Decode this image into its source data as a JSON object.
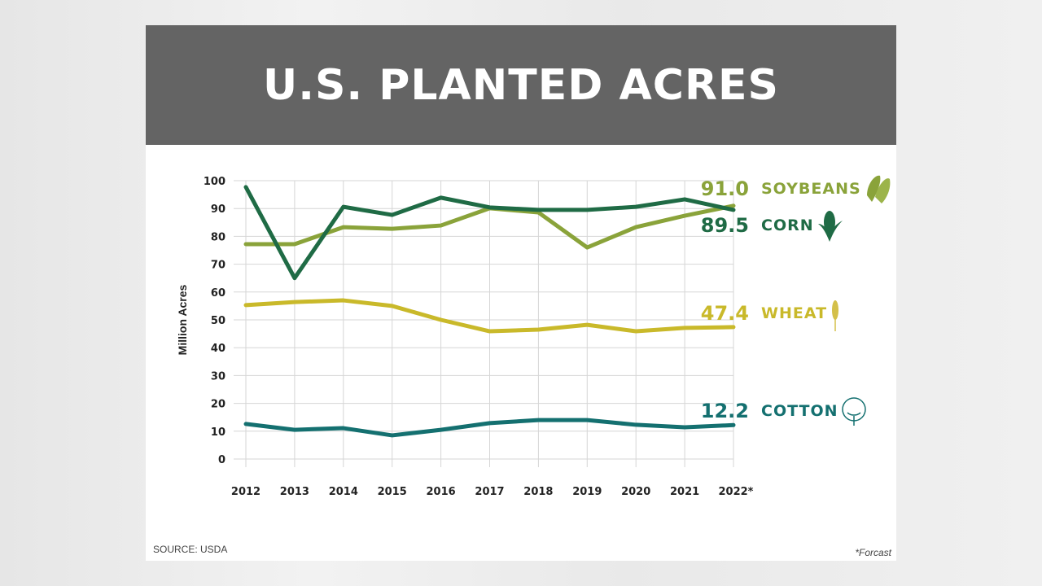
{
  "chart_data": {
    "type": "line",
    "title": "U.S. PLANTED ACRES",
    "ylabel": "Million Acres",
    "xlabel": "",
    "ylim": [
      0,
      100
    ],
    "yticks": [
      0,
      10,
      20,
      30,
      40,
      50,
      60,
      70,
      80,
      90,
      100
    ],
    "categories": [
      "2012",
      "2013",
      "2014",
      "2015",
      "2016",
      "2017",
      "2018",
      "2019",
      "2020",
      "2021",
      "2022*"
    ],
    "grid": true,
    "series": [
      {
        "name": "SOYBEANS",
        "label_value": "91.0",
        "color": "#8aa33a",
        "icon": "soybean-pod-icon",
        "values": [
          77.2,
          77.2,
          83.3,
          82.7,
          83.9,
          90.1,
          88.6,
          76.0,
          83.3,
          87.4,
          91.0
        ]
      },
      {
        "name": "CORN",
        "label_value": "89.5",
        "color": "#1f6b45",
        "icon": "corn-cob-icon",
        "values": [
          97.7,
          65.0,
          90.6,
          87.7,
          93.9,
          90.4,
          89.5,
          89.5,
          90.6,
          93.3,
          89.5
        ]
      },
      {
        "name": "WHEAT",
        "label_value": "47.4",
        "color": "#c9b92a",
        "icon": "wheat-stalk-icon",
        "values": [
          55.3,
          56.4,
          57.0,
          55.0,
          50.0,
          45.9,
          46.5,
          48.2,
          45.9,
          47.1,
          47.4
        ]
      },
      {
        "name": "COTTON",
        "label_value": "12.2",
        "color": "#147070",
        "icon": "cotton-boll-icon",
        "values": [
          12.6,
          10.5,
          11.1,
          8.5,
          10.5,
          12.9,
          14.0,
          14.0,
          12.3,
          11.4,
          12.2
        ]
      }
    ],
    "source": "SOURCE: USDA",
    "footnote": "*Forcast"
  },
  "colors": {
    "header_bg": "#646464",
    "grid": "#d6d6d6",
    "axis_text": "#222222"
  }
}
